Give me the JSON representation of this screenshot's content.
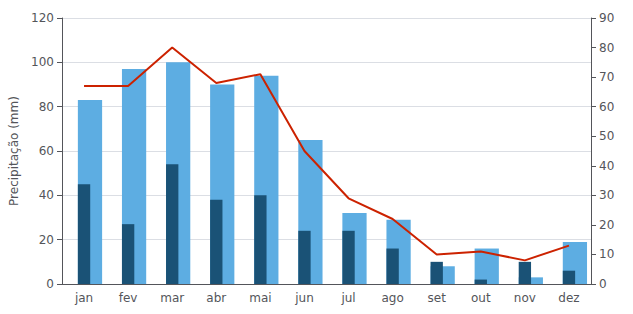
{
  "chart_data": {
    "type": "bar",
    "categories": [
      "jan",
      "fev",
      "mar",
      "abr",
      "mai",
      "jun",
      "jul",
      "ago",
      "set",
      "out",
      "nov",
      "dez"
    ],
    "series": [
      {
        "type": "bar",
        "color": "#5dade2",
        "values": [
          83,
          97,
          100,
          90,
          94,
          65,
          32,
          29,
          8,
          16,
          3,
          19
        ]
      },
      {
        "type": "bar",
        "color": "#1a5276",
        "values": [
          45,
          27,
          54,
          38,
          40,
          24,
          24,
          16,
          10,
          2,
          10,
          6
        ]
      },
      {
        "type": "line",
        "color": "#cc2200",
        "axis": "y2",
        "values": [
          67,
          67,
          80,
          68,
          71,
          45,
          29,
          22,
          10,
          11,
          8,
          13
        ]
      }
    ],
    "ylabel": "Precipitação (mm)",
    "ylim": [
      0,
      120
    ],
    "yticks": [
      0,
      20,
      40,
      60,
      80,
      100,
      120
    ],
    "y2lim": [
      0,
      90
    ],
    "y2ticks": [
      0,
      10,
      20,
      30,
      40,
      50,
      60,
      70,
      80,
      90
    ],
    "grid": true
  }
}
